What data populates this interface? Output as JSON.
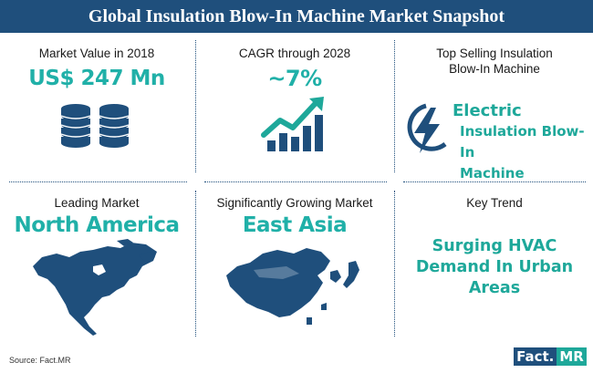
{
  "title": "Global Insulation Blow-In Machine Market Snapshot",
  "cells": {
    "market_value": {
      "label": "Market Value in 2018",
      "value": "US$ 247 Mn",
      "icon": "coins-stack-icon"
    },
    "cagr": {
      "label": "CAGR through 2028",
      "value": "~7%",
      "icon": "growth-chart-icon"
    },
    "top_selling": {
      "label_line1": "Top Selling Insulation",
      "label_line2": "Blow-In Machine",
      "value_line1": "Electric",
      "value_line2": "Insulation Blow-In",
      "value_line3": "Machine",
      "icon": "lightning-bolt-icon"
    },
    "leading_market": {
      "label": "Leading Market",
      "value": "North America",
      "icon": "north-america-map-icon"
    },
    "growing_market": {
      "label": "Significantly Growing Market",
      "value": "East Asia",
      "icon": "east-asia-map-icon"
    },
    "key_trend": {
      "label": "Key Trend",
      "value_line1": "Surging HVAC",
      "value_line2": "Demand In Urban",
      "value_line3": "Areas"
    }
  },
  "footer": {
    "source": "Source: Fact.MR",
    "logo_part1": "Fact.",
    "logo_part2": "MR"
  },
  "colors": {
    "title_bg": "#1f4f7c",
    "accent_teal": "#1ea89a",
    "icon_blue": "#1f4f7c"
  }
}
